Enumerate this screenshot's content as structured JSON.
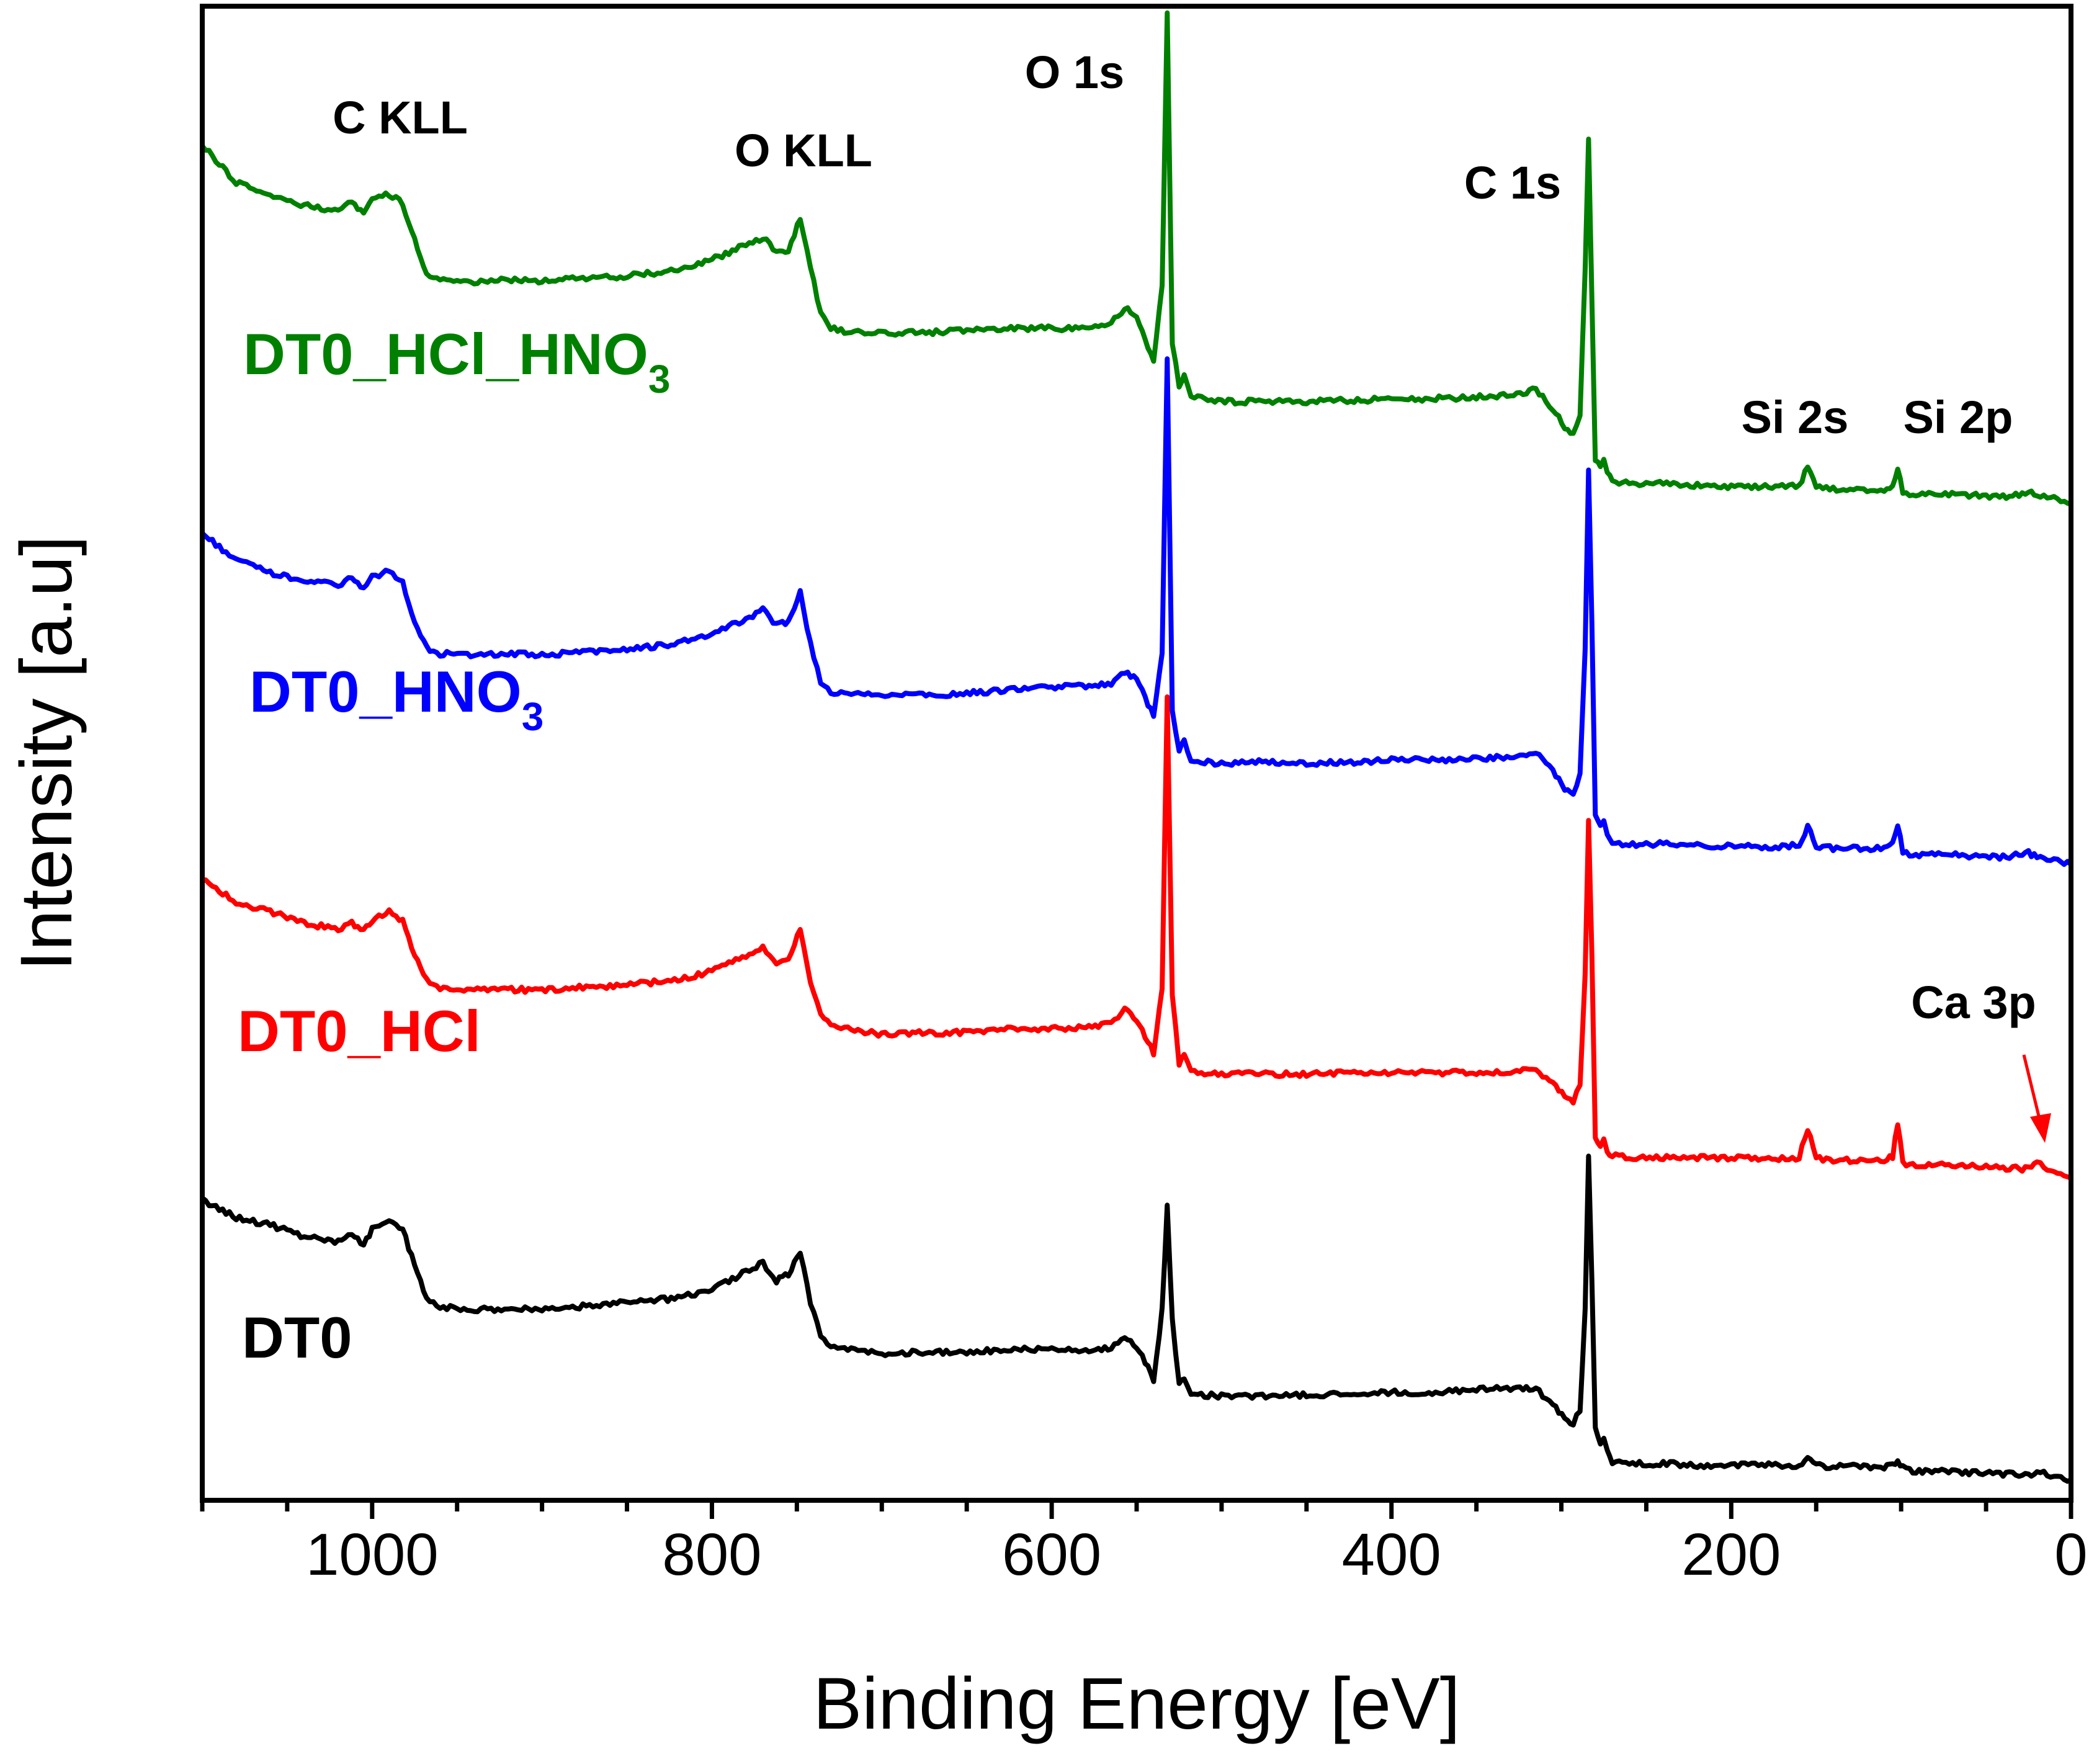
{
  "chart_data": {
    "type": "line",
    "title": "",
    "xlabel": "Binding Energy [eV]",
    "ylabel": "Intensity [a.u]",
    "xlim": [
      1100,
      0
    ],
    "ylim": [
      0,
      10.2
    ],
    "x_ticks": [
      1000,
      800,
      600,
      400,
      200,
      0
    ],
    "y_ticks_shown": false,
    "grid": false,
    "legend": "inline text labels next to each curve",
    "peak_labels": [
      {
        "text": "C KLL",
        "x": 990
      },
      {
        "text": "O KLL",
        "x": 745
      },
      {
        "text": "O 1s",
        "x": 532
      },
      {
        "text": "C 1s",
        "x": 284
      },
      {
        "text": "Si 2s",
        "x": 153
      },
      {
        "text": "Si 2p",
        "x": 102
      },
      {
        "text": "Ca 3p",
        "x": 25
      }
    ],
    "series": [
      {
        "name": "DT0",
        "color": "#000000",
        "x": [
          1100,
          1080,
          1060,
          1040,
          1020,
          1012,
          1005,
          1000,
          990,
          982,
          975,
          968,
          960,
          940,
          920,
          900,
          880,
          860,
          840,
          820,
          800,
          790,
          780,
          770,
          762,
          755,
          748,
          742,
          736,
          730,
          720,
          700,
          680,
          660,
          640,
          620,
          600,
          580,
          565,
          557,
          550,
          545,
          540,
          535,
          532,
          529,
          525,
          522,
          518,
          510,
          500,
          480,
          450,
          420,
          400,
          380,
          350,
          330,
          315,
          305,
          298,
          293,
          289,
          286,
          284,
          282,
          280,
          277,
          275,
          273,
          270,
          260,
          240,
          220,
          200,
          180,
          160,
          155,
          150,
          140,
          120,
          110,
          105,
          102,
          99,
          95,
          80,
          60,
          40,
          25,
          20,
          10,
          0
        ],
        "y": [
          2.05,
          1.93,
          1.88,
          1.8,
          1.76,
          1.82,
          1.74,
          1.85,
          1.92,
          1.85,
          1.6,
          1.38,
          1.32,
          1.3,
          1.31,
          1.3,
          1.32,
          1.34,
          1.36,
          1.38,
          1.44,
          1.5,
          1.56,
          1.62,
          1.5,
          1.54,
          1.7,
          1.35,
          1.12,
          1.06,
          1.04,
          1.0,
          1.01,
          1.01,
          1.02,
          1.03,
          1.03,
          1.02,
          1.04,
          1.1,
          1.05,
          0.95,
          0.82,
          1.3,
          2.0,
          1.25,
          0.78,
          0.84,
          0.72,
          0.72,
          0.71,
          0.71,
          0.72,
          0.73,
          0.74,
          0.73,
          0.76,
          0.76,
          0.76,
          0.66,
          0.56,
          0.52,
          0.62,
          1.3,
          2.35,
          1.5,
          0.48,
          0.38,
          0.44,
          0.36,
          0.26,
          0.25,
          0.25,
          0.24,
          0.24,
          0.24,
          0.24,
          0.29,
          0.24,
          0.23,
          0.23,
          0.23,
          0.24,
          0.27,
          0.22,
          0.2,
          0.2,
          0.19,
          0.18,
          0.17,
          0.19,
          0.17,
          0.14
        ]
      },
      {
        "name": "DT0_HCl",
        "color": "#ff0000",
        "x": [
          1100,
          1080,
          1060,
          1040,
          1020,
          1012,
          1005,
          1000,
          990,
          982,
          975,
          968,
          960,
          940,
          920,
          900,
          880,
          860,
          840,
          820,
          800,
          790,
          780,
          770,
          762,
          755,
          748,
          742,
          736,
          730,
          720,
          700,
          680,
          660,
          640,
          620,
          600,
          580,
          565,
          557,
          550,
          545,
          540,
          535,
          532,
          529,
          525,
          522,
          518,
          510,
          500,
          480,
          450,
          420,
          400,
          380,
          350,
          330,
          315,
          305,
          298,
          293,
          289,
          286,
          284,
          282,
          280,
          277,
          275,
          273,
          270,
          260,
          240,
          220,
          200,
          180,
          160,
          155,
          150,
          140,
          120,
          110,
          105,
          102,
          99,
          95,
          80,
          60,
          40,
          25,
          20,
          10,
          0
        ],
        "y": [
          4.25,
          4.08,
          4.02,
          3.94,
          3.9,
          3.94,
          3.88,
          3.96,
          4.02,
          3.95,
          3.72,
          3.55,
          3.5,
          3.48,
          3.49,
          3.48,
          3.5,
          3.51,
          3.53,
          3.55,
          3.61,
          3.67,
          3.72,
          3.78,
          3.67,
          3.7,
          3.9,
          3.55,
          3.32,
          3.25,
          3.22,
          3.18,
          3.19,
          3.19,
          3.2,
          3.22,
          3.22,
          3.23,
          3.26,
          3.35,
          3.28,
          3.17,
          3.05,
          3.5,
          5.5,
          3.45,
          2.98,
          3.05,
          2.92,
          2.92,
          2.91,
          2.91,
          2.91,
          2.92,
          2.92,
          2.92,
          2.92,
          2.93,
          2.93,
          2.85,
          2.76,
          2.72,
          2.85,
          3.6,
          4.65,
          3.7,
          2.48,
          2.4,
          2.46,
          2.38,
          2.35,
          2.34,
          2.34,
          2.34,
          2.34,
          2.33,
          2.34,
          2.54,
          2.34,
          2.32,
          2.32,
          2.32,
          2.35,
          2.58,
          2.3,
          2.29,
          2.29,
          2.28,
          2.27,
          2.26,
          2.3,
          2.25,
          2.2
        ]
      },
      {
        "name": "DT0_HNO3",
        "color": "#0000ff",
        "x": [
          1100,
          1080,
          1060,
          1040,
          1020,
          1012,
          1005,
          1000,
          990,
          982,
          975,
          968,
          960,
          940,
          920,
          900,
          880,
          860,
          840,
          820,
          800,
          790,
          780,
          770,
          762,
          755,
          748,
          742,
          736,
          730,
          720,
          700,
          680,
          660,
          640,
          620,
          600,
          580,
          565,
          557,
          550,
          545,
          540,
          535,
          532,
          529,
          525,
          522,
          518,
          510,
          500,
          480,
          450,
          420,
          400,
          380,
          350,
          330,
          315,
          305,
          298,
          293,
          289,
          286,
          284,
          282,
          280,
          277,
          275,
          273,
          270,
          260,
          240,
          220,
          200,
          180,
          160,
          155,
          150,
          140,
          120,
          110,
          105,
          102,
          99,
          95,
          80,
          60,
          40,
          25,
          20,
          10,
          0
        ],
        "y": [
          6.6,
          6.42,
          6.33,
          6.28,
          6.25,
          6.3,
          6.22,
          6.3,
          6.35,
          6.26,
          5.98,
          5.82,
          5.78,
          5.77,
          5.78,
          5.77,
          5.79,
          5.8,
          5.82,
          5.85,
          5.92,
          5.97,
          6.01,
          6.08,
          5.97,
          6.0,
          6.2,
          5.85,
          5.58,
          5.52,
          5.5,
          5.5,
          5.5,
          5.5,
          5.52,
          5.54,
          5.55,
          5.56,
          5.58,
          5.66,
          5.6,
          5.48,
          5.35,
          5.8,
          7.8,
          5.4,
          5.12,
          5.18,
          5.05,
          5.04,
          5.03,
          5.04,
          5.03,
          5.04,
          5.06,
          5.05,
          5.06,
          5.08,
          5.1,
          4.98,
          4.86,
          4.82,
          4.96,
          5.8,
          7.05,
          6.0,
          4.68,
          4.6,
          4.65,
          4.56,
          4.49,
          4.48,
          4.48,
          4.47,
          4.47,
          4.46,
          4.47,
          4.6,
          4.47,
          4.45,
          4.45,
          4.45,
          4.48,
          4.62,
          4.42,
          4.41,
          4.41,
          4.4,
          4.39,
          4.42,
          4.39,
          4.37,
          4.34
        ]
      },
      {
        "name": "DT0_HCl_HNO3",
        "color": "#008000",
        "x": [
          1100,
          1080,
          1060,
          1040,
          1020,
          1012,
          1005,
          1000,
          990,
          982,
          975,
          968,
          960,
          940,
          920,
          900,
          880,
          860,
          840,
          820,
          800,
          790,
          780,
          770,
          762,
          755,
          748,
          742,
          736,
          730,
          720,
          700,
          680,
          660,
          640,
          620,
          600,
          580,
          565,
          557,
          550,
          545,
          540,
          535,
          532,
          529,
          525,
          522,
          518,
          510,
          500,
          480,
          450,
          420,
          400,
          380,
          350,
          330,
          315,
          305,
          298,
          293,
          289,
          286,
          284,
          282,
          280,
          277,
          275,
          273,
          270,
          260,
          240,
          220,
          200,
          180,
          160,
          155,
          150,
          140,
          120,
          110,
          105,
          102,
          99,
          95,
          80,
          60,
          40,
          25,
          20,
          10,
          0
        ],
        "y": [
          9.25,
          9.0,
          8.9,
          8.84,
          8.8,
          8.86,
          8.8,
          8.88,
          8.92,
          8.85,
          8.6,
          8.38,
          8.33,
          8.32,
          8.33,
          8.32,
          8.34,
          8.35,
          8.37,
          8.4,
          8.47,
          8.52,
          8.57,
          8.62,
          8.52,
          8.54,
          8.75,
          8.42,
          8.1,
          8.0,
          7.98,
          7.97,
          7.97,
          7.98,
          7.99,
          8.0,
          8.0,
          8.0,
          8.04,
          8.14,
          8.08,
          7.92,
          7.78,
          8.3,
          10.15,
          7.9,
          7.6,
          7.68,
          7.54,
          7.52,
          7.5,
          7.5,
          7.5,
          7.51,
          7.52,
          7.52,
          7.53,
          7.55,
          7.58,
          7.45,
          7.33,
          7.28,
          7.42,
          8.4,
          9.3,
          8.2,
          7.1,
          7.05,
          7.12,
          7.02,
          6.95,
          6.94,
          6.94,
          6.93,
          6.92,
          6.92,
          6.93,
          7.05,
          6.92,
          6.9,
          6.9,
          6.9,
          6.93,
          7.05,
          6.88,
          6.87,
          6.87,
          6.86,
          6.85,
          6.88,
          6.86,
          6.84,
          6.8
        ]
      }
    ],
    "series_labels": [
      {
        "series": "DT0_HCl_HNO3",
        "text": "DT0_HCl_HNO",
        "subscript": "3"
      },
      {
        "series": "DT0_HNO3",
        "text": "DT0_HNO",
        "subscript": "3"
      },
      {
        "series": "DT0_HCl",
        "text": "DT0_HCl",
        "subscript": ""
      },
      {
        "series": "DT0",
        "text": "DT0",
        "subscript": ""
      }
    ]
  }
}
